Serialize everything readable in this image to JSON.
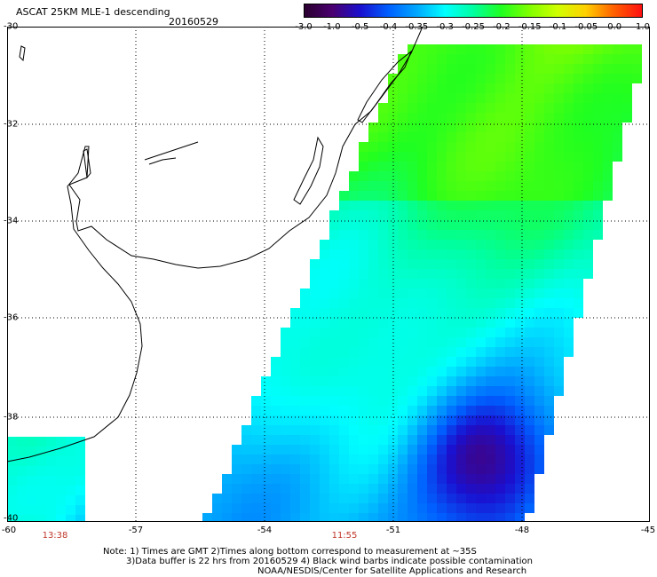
{
  "title": "ASCAT 25KM MLE-1 descending",
  "date": "20160529",
  "colorbar": {
    "labels": [
      "-3.0",
      "-1.0",
      "-0.5",
      "-0.4",
      "-0.35",
      "-0.3",
      "-0.25",
      "-0.2",
      "-0.15",
      "-0.1",
      "-0.05",
      "0.0",
      "1.0"
    ],
    "colors": [
      "#2b0030",
      "#4a0070",
      "#1a10d0",
      "#0060ff",
      "#00a8ff",
      "#00ffff",
      "#00ffa0",
      "#20ff20",
      "#80ff00",
      "#d0ff00",
      "#ffd000",
      "#ff6000",
      "#ff1010"
    ]
  },
  "axes": {
    "lat_labels": [
      "-30",
      "-32",
      "-34",
      "-36",
      "-38",
      "-40"
    ],
    "lon_labels": [
      "-60",
      "-57",
      "-54",
      "-51",
      "-48",
      "-45"
    ]
  },
  "times": [
    "13:38",
    "11:55"
  ],
  "notes": {
    "line1": "Note: 1) Times are GMT 2)Times along bottom correspond to measurement at ~35S",
    "line2": "3)Data buffer is 22 hrs from 20160529 4) Black wind barbs indicate possible contamination",
    "line3": "NOAA/NESDIS/Center for Satellite Applications and Research"
  }
}
